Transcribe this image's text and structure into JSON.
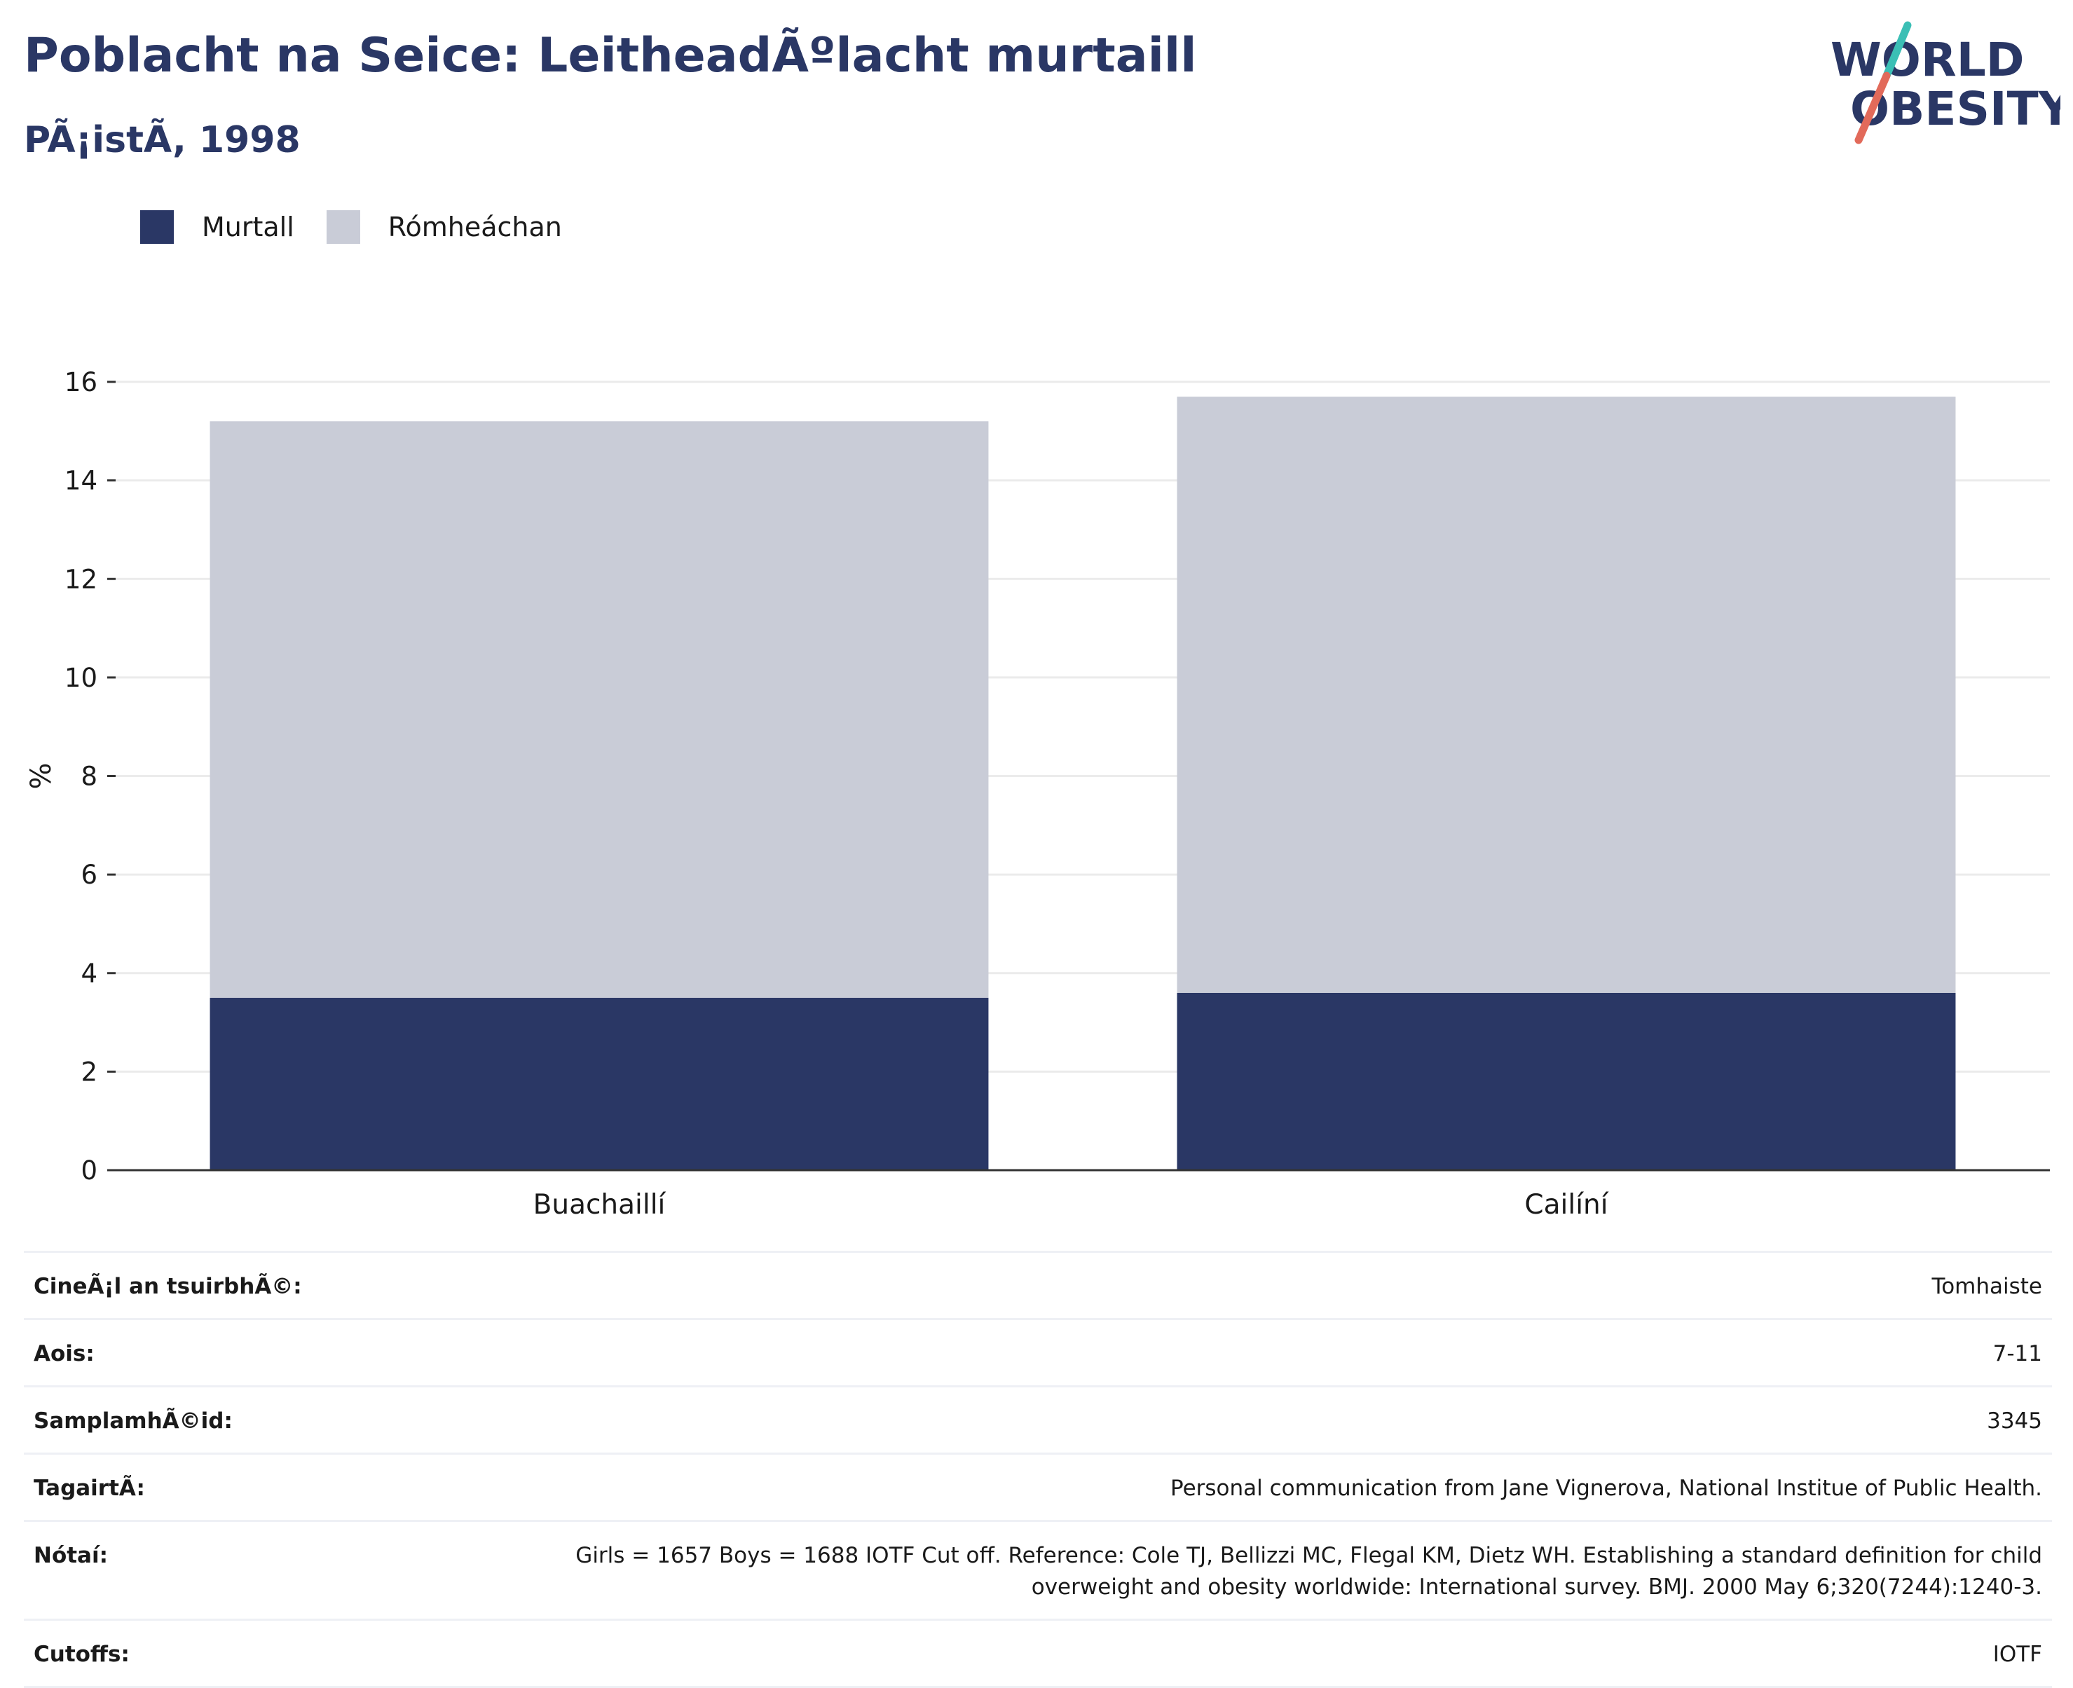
{
  "header": {
    "title": "Poblacht na Seice: LeitheadÃºlacht murtaill",
    "subtitle": "PÃ¡istÃ, 1998"
  },
  "logo": {
    "line1": "WORLD",
    "line2": "OBESITY",
    "icon": "world-obesity-slash-logo",
    "colors": {
      "text": "#2a3765",
      "slash_top": "#3bbfb5",
      "slash_bottom": "#e26a5a"
    }
  },
  "legend": {
    "items": [
      {
        "label": "Murtall",
        "color": "#2a3765"
      },
      {
        "label": "Rómheáchan",
        "color": "#c9ccd7"
      }
    ]
  },
  "chart_data": {
    "type": "bar",
    "stacked": true,
    "categories": [
      "Buachaillí",
      "Cailíní"
    ],
    "series": [
      {
        "name": "Murtall",
        "values": [
          3.5,
          3.6
        ],
        "color": "#2a3765"
      },
      {
        "name": "Rómheáchan",
        "values": [
          11.7,
          12.1
        ],
        "color": "#c9ccd7"
      }
    ],
    "ylabel": "%",
    "ylim": [
      0,
      16
    ],
    "yticks": [
      0,
      2,
      4,
      6,
      8,
      10,
      12,
      14,
      16
    ],
    "grid": true,
    "legend_position": "top-left"
  },
  "info": {
    "rows": [
      {
        "label": "CineÃ¡l an tsuirbhÃ©:",
        "value": "Tomhaiste"
      },
      {
        "label": "Aois:",
        "value": "7-11"
      },
      {
        "label": "SamplamhÃ©id:",
        "value": "3345"
      },
      {
        "label": "TagairtÃ:",
        "value": "Personal communication from Jane Vignerova, National Institue of Public Health."
      },
      {
        "label": "Nótaí:",
        "value": "Girls = 1657 Boys = 1688 IOTF Cut off. Reference: Cole TJ, Bellizzi MC, Flegal KM, Dietz WH. Establishing a standard definition for child overweight and obesity worldwide: International survey. BMJ. 2000 May 6;320(7244):1240-3."
      },
      {
        "label": "Cutoffs:",
        "value": "IOTF"
      }
    ]
  }
}
